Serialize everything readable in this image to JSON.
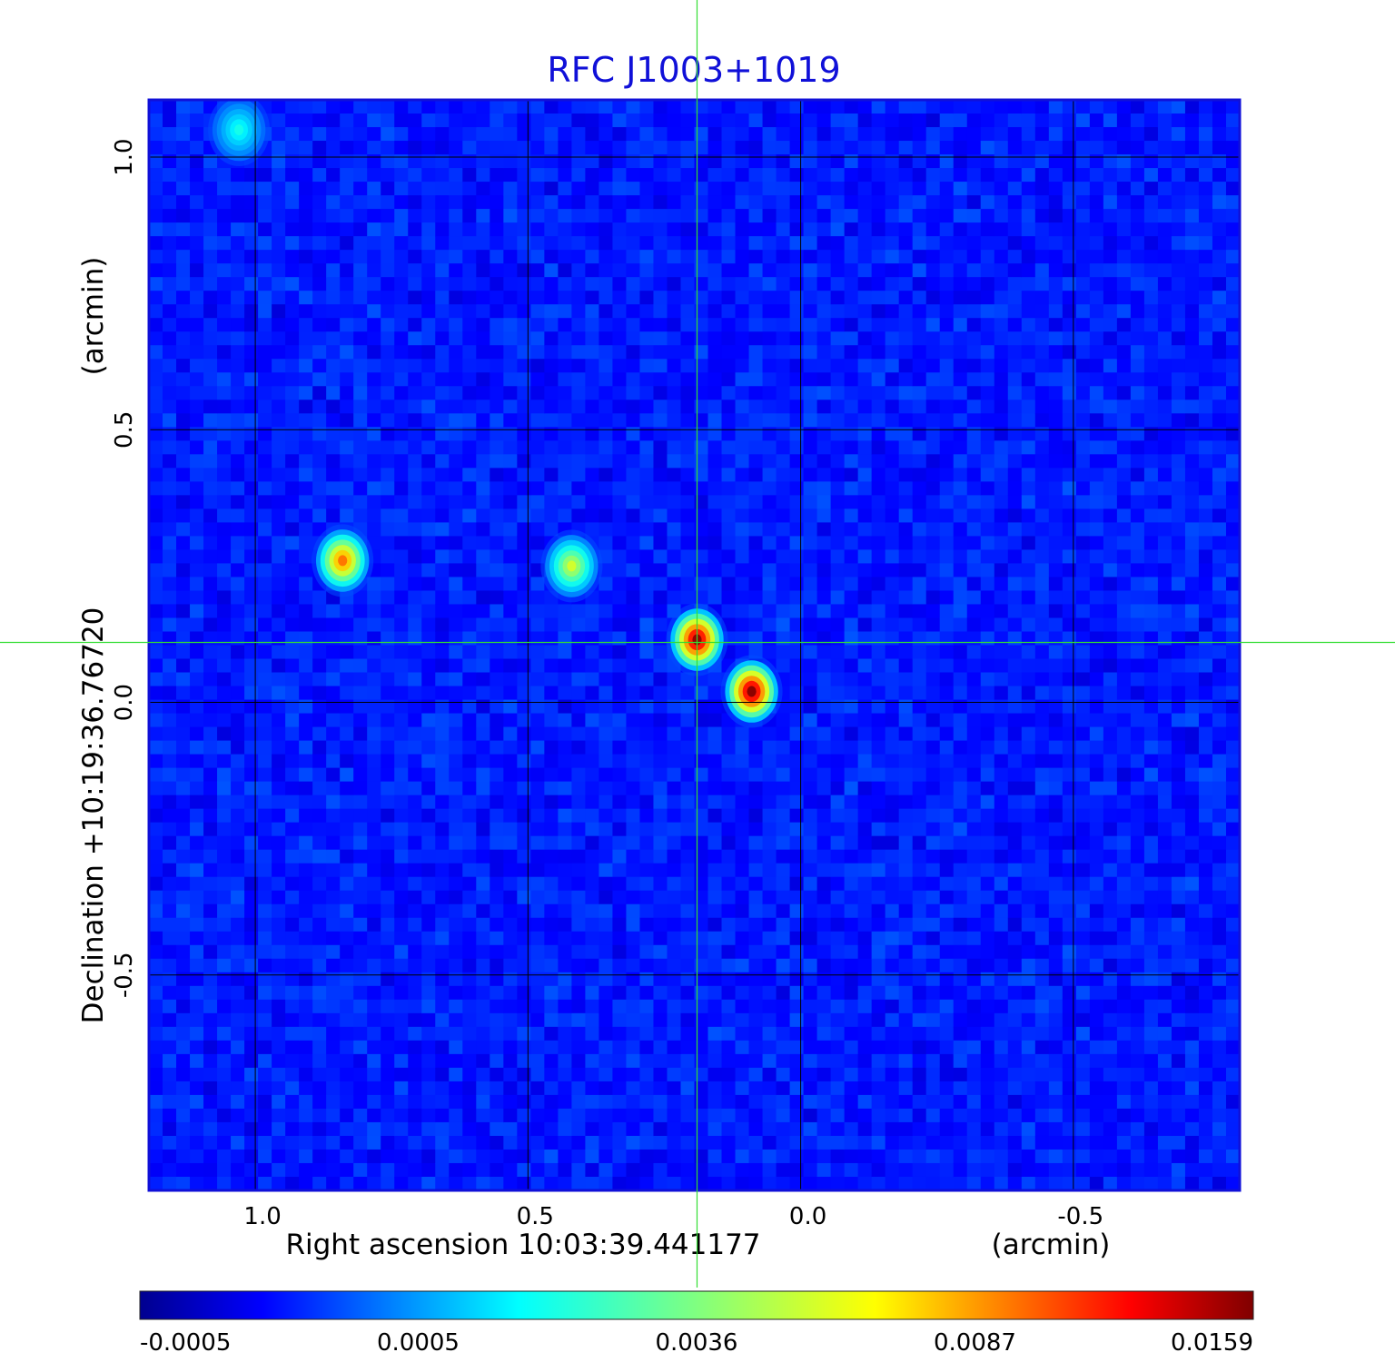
{
  "chart_data": {
    "type": "heatmap",
    "title": "RFC J1003+1019",
    "xlabel": "Right ascension  10:03:39.441177",
    "xunit": "(arcmin)",
    "ylabel": "Declination  +10:19:36.76720",
    "yunit": "(arcmin)",
    "xlim": [
      1.195,
      -0.805
    ],
    "ylim": [
      -0.895,
      1.105
    ],
    "x_ticks": [
      {
        "value": 1.0,
        "label": "1.0"
      },
      {
        "value": 0.5,
        "label": "0.5"
      },
      {
        "value": 0.0,
        "label": "0.0"
      },
      {
        "value": -0.5,
        "label": "-0.5"
      }
    ],
    "y_ticks": [
      {
        "value": 1.0,
        "label": "1.0"
      },
      {
        "value": 0.5,
        "label": "0.5"
      },
      {
        "value": 0.0,
        "label": "0.0"
      },
      {
        "value": -0.5,
        "label": "-0.5"
      }
    ],
    "grid": true,
    "crosshair": {
      "x": 0.19,
      "y": 0.11,
      "color": "#33dd33"
    },
    "colormap": "jet",
    "colorbar": {
      "placement": "bottom",
      "ticks": [
        "-0.0005",
        "0.0005",
        "0.0036",
        "0.0087",
        "0.0159"
      ]
    },
    "sources": [
      {
        "x": 0.84,
        "y": 0.26,
        "peak": 0.0085
      },
      {
        "x": 0.42,
        "y": 0.25,
        "peak": 0.0042
      },
      {
        "x": 0.19,
        "y": 0.115,
        "peak": 0.0155
      },
      {
        "x": 0.09,
        "y": 0.02,
        "peak": 0.0159
      },
      {
        "x": 1.03,
        "y": 1.05,
        "peak": 0.0012
      }
    ],
    "colors": {
      "title": "#1010d8",
      "frame": "#1010d8",
      "grid": "#000000",
      "crosshair": "#33dd33"
    }
  }
}
